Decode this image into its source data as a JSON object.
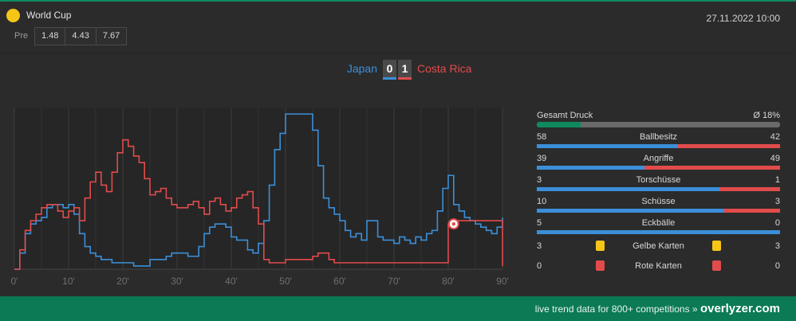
{
  "header": {
    "competition": "World Cup",
    "datetime": "27.11.2022 10:00",
    "pre_label": "Pre",
    "odds": [
      "1.48",
      "4.43",
      "7.67"
    ]
  },
  "match": {
    "home_team": "Japan",
    "away_team": "Costa Rica",
    "home_score": "0",
    "away_score": "1"
  },
  "colors": {
    "home": "#3b8fd9",
    "away": "#e24b4b",
    "accent": "#0f8a5f",
    "yellow_card": "#f5c518",
    "red_card": "#e24b4b"
  },
  "chart_data": {
    "type": "line",
    "xlabel": "",
    "ylabel": "",
    "xlim": [
      0,
      90
    ],
    "ylim": [
      0,
      100
    ],
    "x_ticks": [
      "0'",
      "10'",
      "20'",
      "30'",
      "40'",
      "50'",
      "60'",
      "70'",
      "80'",
      "90'"
    ],
    "grid": true,
    "series": [
      {
        "name": "Japan",
        "x": [
          0,
          1,
          2,
          3,
          4,
          5,
          6,
          7,
          8,
          9,
          10,
          11,
          12,
          13,
          14,
          15,
          16,
          17,
          18,
          19,
          20,
          21,
          22,
          23,
          24,
          25,
          26,
          27,
          28,
          29,
          30,
          31,
          32,
          33,
          34,
          35,
          36,
          37,
          38,
          39,
          40,
          41,
          42,
          43,
          44,
          45,
          46,
          47,
          48,
          49,
          50,
          51,
          52,
          53,
          54,
          55,
          56,
          57,
          58,
          59,
          60,
          61,
          62,
          63,
          64,
          65,
          66,
          67,
          68,
          69,
          70,
          71,
          72,
          73,
          74,
          75,
          76,
          77,
          78,
          79,
          80,
          81,
          82,
          83,
          84,
          85,
          86,
          87,
          88,
          89,
          90
        ],
        "values": [
          0,
          10,
          22,
          28,
          30,
          32,
          38,
          40,
          40,
          38,
          40,
          34,
          22,
          14,
          10,
          8,
          6,
          6,
          4,
          4,
          4,
          4,
          2,
          2,
          2,
          6,
          6,
          6,
          8,
          10,
          10,
          10,
          8,
          8,
          14,
          22,
          26,
          28,
          28,
          26,
          20,
          18,
          18,
          12,
          10,
          16,
          30,
          52,
          74,
          84,
          96,
          96,
          96,
          96,
          96,
          86,
          64,
          44,
          38,
          34,
          30,
          24,
          20,
          22,
          18,
          30,
          30,
          20,
          18,
          18,
          16,
          20,
          18,
          16,
          20,
          18,
          22,
          24,
          36,
          50,
          58,
          40,
          36,
          32,
          30,
          28,
          26,
          24,
          22,
          26,
          32
        ]
      },
      {
        "name": "Costa Rica",
        "x": [
          0,
          1,
          2,
          3,
          4,
          5,
          6,
          7,
          8,
          9,
          10,
          11,
          12,
          13,
          14,
          15,
          16,
          17,
          18,
          19,
          20,
          21,
          22,
          23,
          24,
          25,
          26,
          27,
          28,
          29,
          30,
          31,
          32,
          33,
          34,
          35,
          36,
          37,
          38,
          39,
          40,
          41,
          42,
          43,
          44,
          45,
          46,
          47,
          48,
          49,
          50,
          51,
          52,
          53,
          54,
          55,
          56,
          57,
          58,
          59,
          60,
          61,
          62,
          63,
          64,
          65,
          66,
          67,
          68,
          69,
          70,
          71,
          72,
          73,
          74,
          75,
          76,
          77,
          78,
          79,
          80,
          81,
          82,
          83,
          84,
          85,
          86,
          87,
          88,
          89,
          90
        ],
        "values": [
          0,
          12,
          24,
          30,
          34,
          38,
          40,
          40,
          36,
          32,
          36,
          38,
          30,
          44,
          54,
          60,
          52,
          48,
          60,
          72,
          80,
          76,
          70,
          66,
          56,
          46,
          48,
          50,
          44,
          40,
          38,
          38,
          40,
          42,
          38,
          34,
          42,
          44,
          40,
          36,
          38,
          44,
          46,
          48,
          38,
          28,
          6,
          4,
          4,
          4,
          6,
          6,
          6,
          6,
          6,
          8,
          10,
          10,
          6,
          4,
          4,
          4,
          4,
          4,
          4,
          4,
          4,
          4,
          4,
          4,
          4,
          4,
          4,
          4,
          4,
          4,
          4,
          4,
          4,
          4,
          28,
          30,
          30,
          30,
          30,
          30,
          30,
          30,
          30,
          30,
          2
        ]
      }
    ],
    "events": [
      {
        "type": "goal",
        "team": "Costa Rica",
        "minute": 81
      }
    ]
  },
  "stats": {
    "pressure_label": "Gesamt Druck",
    "pressure_value": "Ø 18%",
    "pressure_fraction": 0.18,
    "rows": [
      {
        "label": "Ballbesitz",
        "home": "58",
        "away": "42",
        "home_fraction": 0.58
      },
      {
        "label": "Angriffe",
        "home": "39",
        "away": "49",
        "home_fraction": 0.443
      },
      {
        "label": "Torschüsse",
        "home": "3",
        "away": "1",
        "home_fraction": 0.75
      },
      {
        "label": "Schüsse",
        "home": "10",
        "away": "3",
        "home_fraction": 0.769
      },
      {
        "label": "Eckbälle",
        "home": "5",
        "away": "0",
        "home_fraction": 1.0
      }
    ],
    "yellow": {
      "label": "Gelbe Karten",
      "home": "3",
      "away": "3"
    },
    "red": {
      "label": "Rote Karten",
      "home": "0",
      "away": "0"
    }
  },
  "footer": {
    "text": "live trend data for 800+ competitions »",
    "brand": "overlyzer.com"
  }
}
